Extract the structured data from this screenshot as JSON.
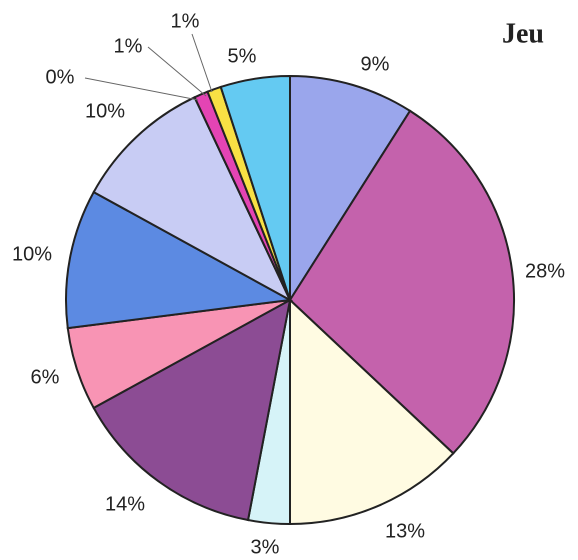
{
  "chart_data": {
    "type": "pie",
    "title": "Jeu",
    "categories": [
      null,
      null,
      null,
      null,
      null,
      null,
      null,
      null,
      null,
      null,
      null,
      null
    ],
    "values": [
      9,
      28,
      13,
      3,
      14,
      6,
      10,
      10,
      0,
      1,
      1,
      5
    ],
    "value_labels": [
      "9%",
      "28%",
      "13%",
      "3%",
      "14%",
      "6%",
      "10%",
      "10%",
      "0%",
      "1%",
      "1%",
      "5%"
    ],
    "colors": [
      "#9aa6ec",
      "#c462ac",
      "#fffbe2",
      "#d6f3f8",
      "#8c4c94",
      "#f894b4",
      "#5c8ae2",
      "#c8ccf4",
      "#e46cc4",
      "#e444b4",
      "#f8e044",
      "#64caf2"
    ]
  }
}
